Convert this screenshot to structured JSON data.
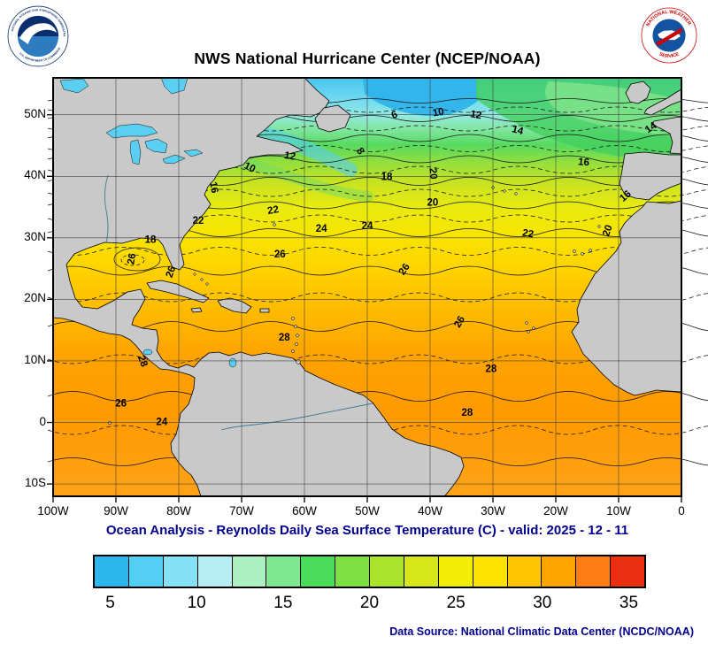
{
  "header": {
    "title": "NWS National Hurricane Center (NCEP/NOAA)",
    "noaa_logo": {
      "top_text": "NATIONAL OCEANIC AND ATMOSPHERIC ADMINISTRATION",
      "bottom_text": "U.S. DEPARTMENT OF COMMERCE"
    },
    "nws_logo": {
      "top_text": "NATIONAL WEATHER",
      "bottom_text": "SERVICE"
    }
  },
  "map": {
    "x_ticks": [
      "100W",
      "90W",
      "80W",
      "70W",
      "60W",
      "50W",
      "40W",
      "30W",
      "20W",
      "10W",
      "0"
    ],
    "y_ticks": [
      "50N",
      "40N",
      "30N",
      "20N",
      "10N",
      "0",
      "10S"
    ],
    "contour_labels": [
      {
        "value": "6",
        "lon": 45.5,
        "lat": 49.5,
        "rot": -20
      },
      {
        "value": "10",
        "lon": 38.6,
        "lat": 49.9,
        "rot": -10
      },
      {
        "value": "12",
        "lon": 32.8,
        "lat": 49.5,
        "rot": 10
      },
      {
        "value": "14",
        "lon": 26.2,
        "lat": 47.0,
        "rot": 15
      },
      {
        "value": "14",
        "lon": 4.6,
        "lat": 47.5,
        "rot": -35
      },
      {
        "value": "16",
        "lon": 15.6,
        "lat": 41.8,
        "rot": 5
      },
      {
        "value": "8",
        "lon": 51.5,
        "lat": 43.8,
        "rot": 55
      },
      {
        "value": "10",
        "lon": 68.9,
        "lat": 41.0,
        "rot": 25
      },
      {
        "value": "12",
        "lon": 62.4,
        "lat": 42.8,
        "rot": 10
      },
      {
        "value": "16",
        "lon": 74.9,
        "lat": 38.1,
        "rot": 80
      },
      {
        "value": "18",
        "lon": 46.9,
        "lat": 39.4,
        "rot": 0
      },
      {
        "value": "20",
        "lon": 40.0,
        "lat": 40.4,
        "rot": 85
      },
      {
        "value": "16",
        "lon": 8.6,
        "lat": 36.4,
        "rot": -40
      },
      {
        "value": "22",
        "lon": 64.9,
        "lat": 34.0,
        "rot": -10
      },
      {
        "value": "22",
        "lon": 76.9,
        "lat": 32.3,
        "rot": 0
      },
      {
        "value": "24",
        "lon": 57.3,
        "lat": 31.0,
        "rot": 0
      },
      {
        "value": "24",
        "lon": 50.0,
        "lat": 31.4,
        "rot": 0
      },
      {
        "value": "20",
        "lon": 39.6,
        "lat": 35.2,
        "rot": 0
      },
      {
        "value": "22",
        "lon": 24.5,
        "lat": 30.2,
        "rot": 10
      },
      {
        "value": "20",
        "lon": 11.3,
        "lat": 31.0,
        "rot": -70
      },
      {
        "value": "18",
        "lon": 84.5,
        "lat": 29.2,
        "rot": 0
      },
      {
        "value": "26",
        "lon": 63.9,
        "lat": 26.8,
        "rot": 0
      },
      {
        "value": "26",
        "lon": 87.0,
        "lat": 26.5,
        "rot": -80
      },
      {
        "value": "26",
        "lon": 80.8,
        "lat": 24.3,
        "rot": -70
      },
      {
        "value": "26",
        "lon": 43.7,
        "lat": 24.6,
        "rot": -55
      },
      {
        "value": "28",
        "lon": 63.2,
        "lat": 13.3,
        "rot": 0
      },
      {
        "value": "26",
        "lon": 34.9,
        "lat": 16.1,
        "rot": -60
      },
      {
        "value": "28",
        "lon": 86.2,
        "lat": 9.8,
        "rot": 70
      },
      {
        "value": "28",
        "lon": 30.3,
        "lat": 8.2,
        "rot": 0
      },
      {
        "value": "26",
        "lon": 89.2,
        "lat": 2.6,
        "rot": 0
      },
      {
        "value": "24",
        "lon": 82.7,
        "lat": -0.4,
        "rot": 0
      },
      {
        "value": "28",
        "lon": 34.1,
        "lat": 1.1,
        "rot": 0
      }
    ]
  },
  "caption": "Ocean Analysis - Reynolds Daily Sea Surface Temperature (C) - valid: 2025 - 12 - 11",
  "colorbar": {
    "min": 4,
    "max": 36,
    "ticks": [
      "5",
      "10",
      "15",
      "20",
      "25",
      "30",
      "35"
    ],
    "segments": [
      "#2cb6ec",
      "#55cef3",
      "#86e0f6",
      "#b6eef3",
      "#abefc2",
      "#7ee78f",
      "#4cda5b",
      "#7edf42",
      "#ace32d",
      "#d7e81a",
      "#f3ee07",
      "#ffe300",
      "#ffc600",
      "#ffa500",
      "#ff7d16",
      "#ea2e12"
    ]
  },
  "footer": {
    "data_source": "Data Source: National Climatic Data Center (NCDC/NOAA)"
  }
}
